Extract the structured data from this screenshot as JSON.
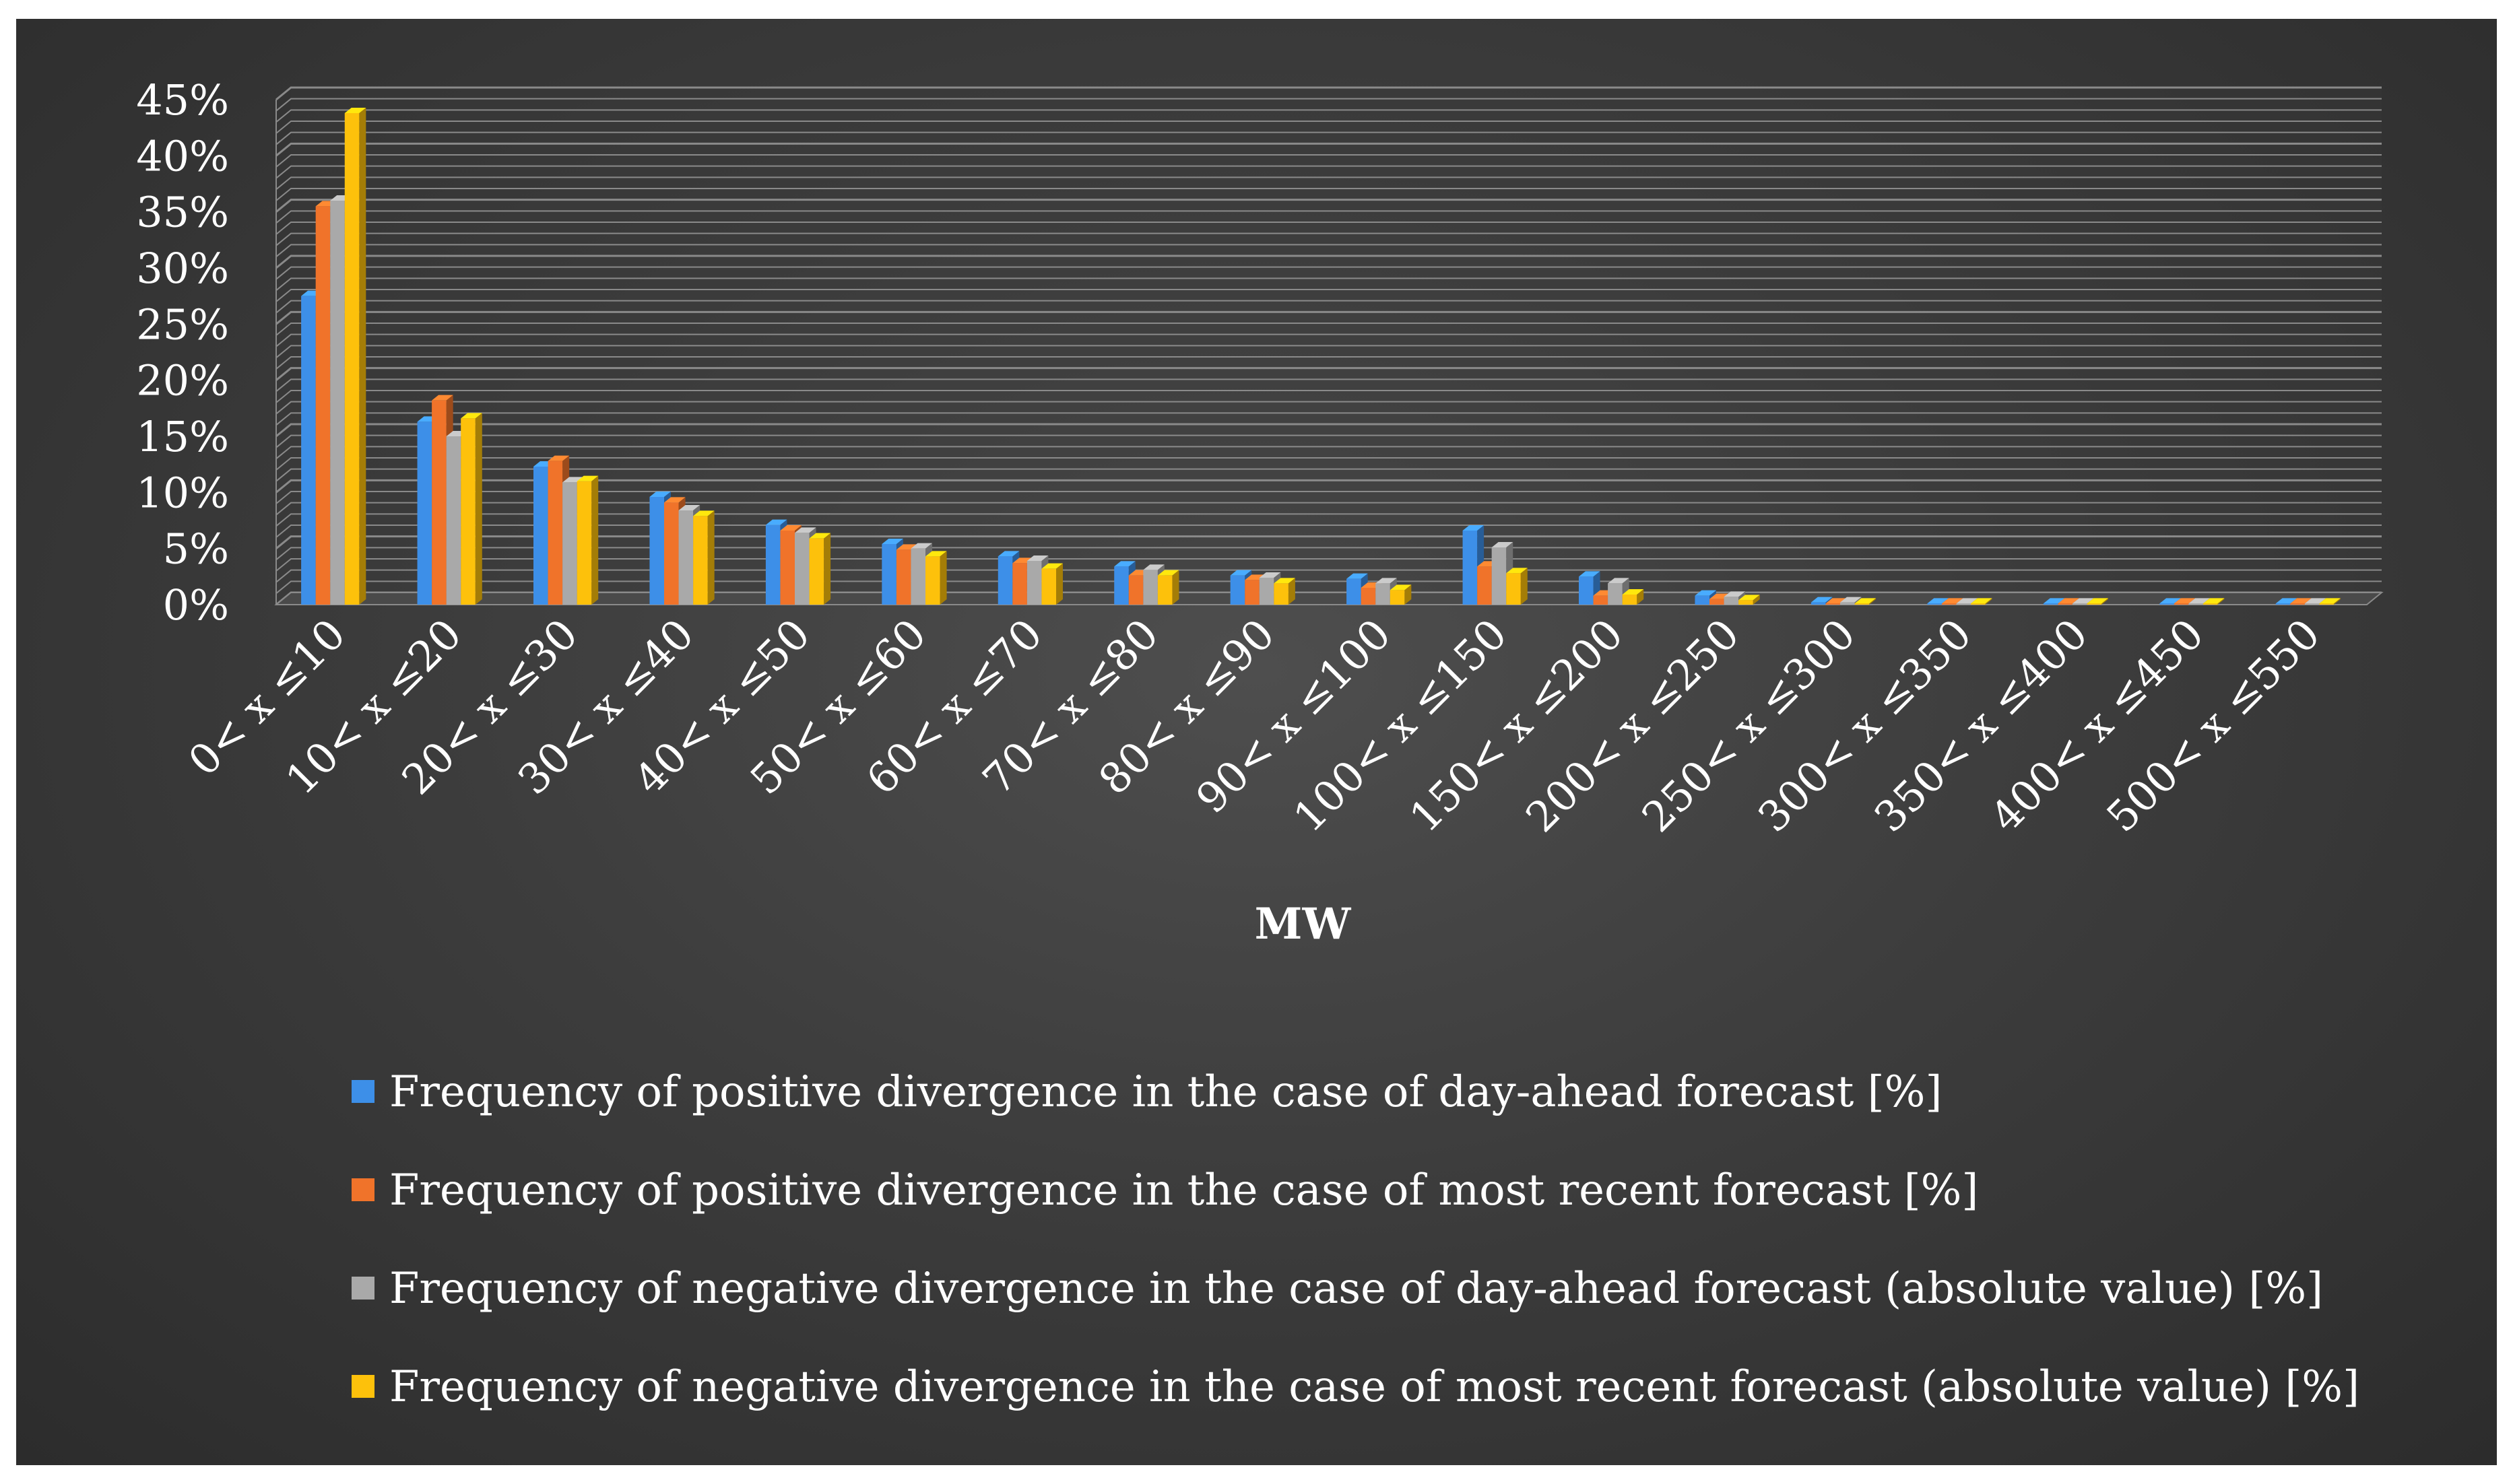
{
  "chart_data": {
    "type": "bar",
    "title": "",
    "xlabel": "MW",
    "ylabel": "",
    "ylim": [
      0,
      45
    ],
    "y_ticks": [
      "0%",
      "5%",
      "10%",
      "15%",
      "20%",
      "25%",
      "30%",
      "35%",
      "40%",
      "45%"
    ],
    "grid": true,
    "legend_position": "bottom",
    "categories": [
      "0< x ≤10",
      "10< x ≤20",
      "20< x ≤30",
      "30< x ≤40",
      "40< x ≤50",
      "50< x ≤60",
      "60< x ≤70",
      "70< x ≤80",
      "80< x ≤90",
      "90< x ≤100",
      "100< x ≤150",
      "150< x ≤200",
      "200< x ≤250",
      "250< x ≤300",
      "300< x ≤350",
      "350< x ≤400",
      "400< x ≤450",
      "500< x ≤550"
    ],
    "series": [
      {
        "name": "Frequency of positive divergence in the case of day-ahead forecast [%]",
        "color": "#3d8fe8",
        "values": [
          27.5,
          16.3,
          12.3,
          9.6,
          7.1,
          5.4,
          4.3,
          3.4,
          2.6,
          2.3,
          6.6,
          2.5,
          0.8,
          0.2,
          0.1,
          0.1,
          0.1,
          0.1
        ]
      },
      {
        "name": "Frequency of positive divergence in the case of most recent forecast [%]",
        "color": "#f0732a",
        "values": [
          35.5,
          18.2,
          12.8,
          9.1,
          6.6,
          4.9,
          3.7,
          2.6,
          2.2,
          1.5,
          3.4,
          0.8,
          0.5,
          0.1,
          0.1,
          0.1,
          0.1,
          0.1
        ]
      },
      {
        "name": "Frequency of negative divergence in the case of day-ahead forecast (absolute value) [%]",
        "color": "#a9a9a9",
        "values": [
          36.0,
          15.0,
          10.9,
          8.4,
          6.4,
          5.0,
          3.9,
          3.1,
          2.4,
          1.9,
          5.1,
          1.9,
          0.7,
          0.2,
          0.1,
          0.1,
          0.1,
          0.1
        ]
      },
      {
        "name": "Frequency of negative divergence in the case of most recent forecast (absolute value) [%]",
        "color": "#fdc10b",
        "values": [
          43.8,
          16.6,
          11.0,
          7.9,
          5.9,
          4.3,
          3.2,
          2.6,
          1.9,
          1.3,
          2.8,
          0.9,
          0.4,
          0.1,
          0.1,
          0.1,
          0.1,
          0.1
        ]
      }
    ]
  }
}
